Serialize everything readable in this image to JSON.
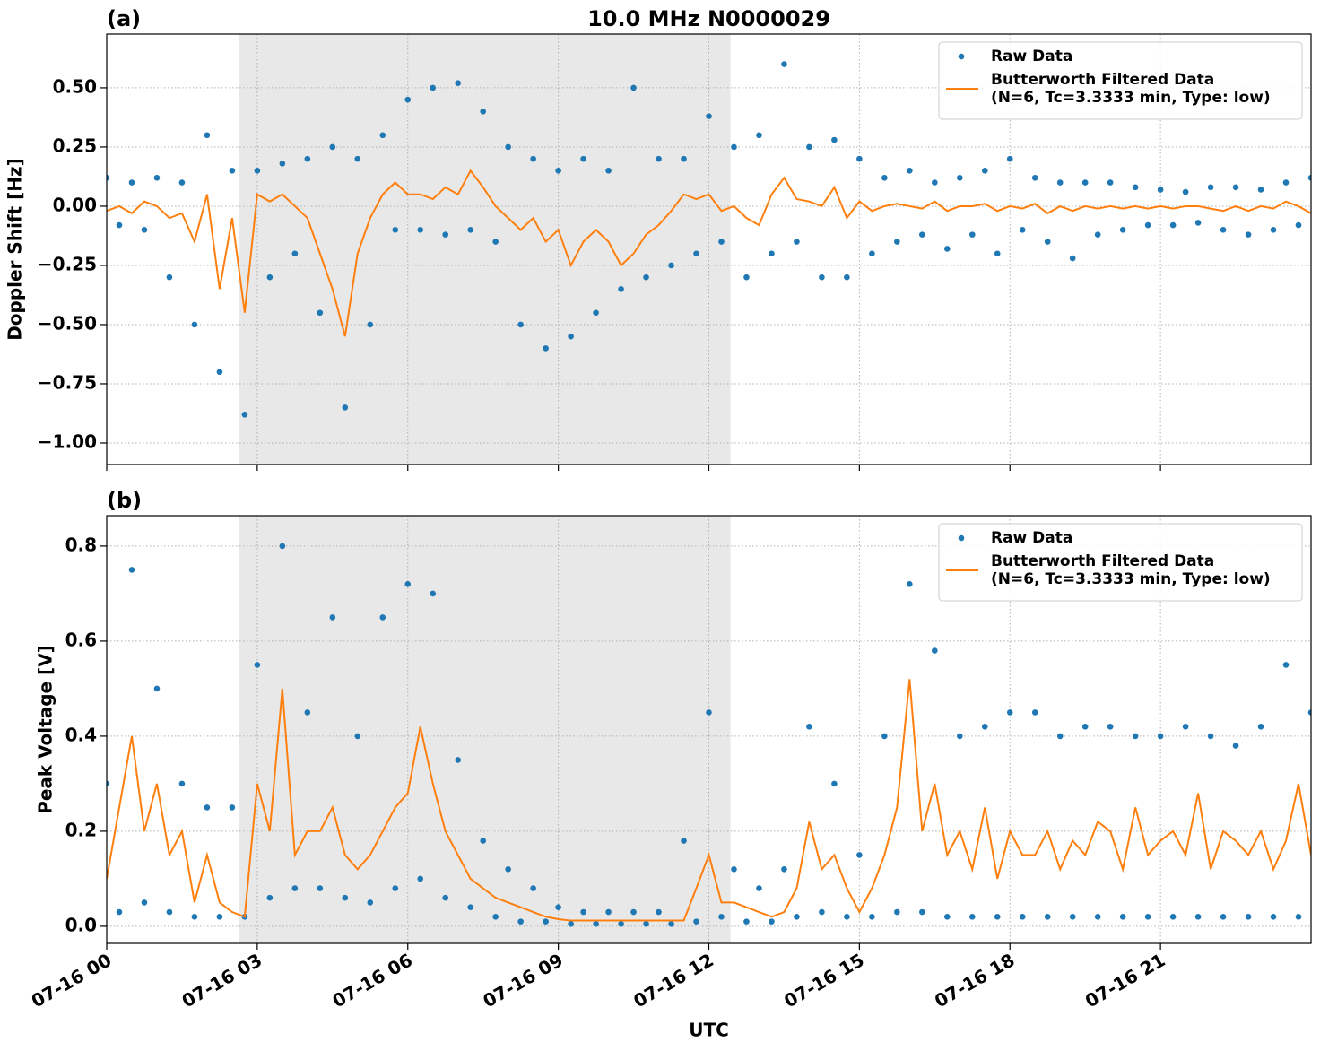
{
  "chart_data": [
    {
      "type": "line",
      "panel_label": "(a)",
      "title": "10.0 MHz N0000029",
      "y_label": "Doppler Shift [Hz]",
      "x": [
        0,
        0.25,
        0.5,
        0.75,
        1,
        1.25,
        1.5,
        1.75,
        2,
        2.25,
        2.5,
        2.75,
        3,
        3.25,
        3.5,
        3.75,
        4,
        4.25,
        4.5,
        4.75,
        5,
        5.25,
        5.5,
        5.75,
        6,
        6.25,
        6.5,
        6.75,
        7,
        7.25,
        7.5,
        7.75,
        8,
        8.25,
        8.5,
        8.75,
        9,
        9.25,
        9.5,
        9.75,
        10,
        10.25,
        10.5,
        10.75,
        11,
        11.25,
        11.5,
        11.75,
        12,
        12.25,
        12.5,
        12.75,
        13,
        13.25,
        13.5,
        13.75,
        14,
        14.25,
        14.5,
        14.75,
        15,
        15.25,
        15.5,
        15.75,
        16,
        16.25,
        16.5,
        16.75,
        17,
        17.25,
        17.5,
        17.75,
        18,
        18.25,
        18.5,
        18.75,
        19,
        19.25,
        19.5,
        19.75,
        20,
        20.25,
        20.5,
        20.75,
        21,
        21.25,
        21.5,
        21.75,
        22,
        22.25,
        22.5,
        22.75,
        23,
        23.25,
        23.5,
        23.75,
        24
      ],
      "series": [
        {
          "name": "Raw Data",
          "color": "#1f77b4",
          "style": "points",
          "values": [
            0.12,
            -0.08,
            0.1,
            -0.1,
            0.12,
            -0.3,
            0.1,
            -0.5,
            0.3,
            -0.7,
            0.15,
            -0.88,
            0.15,
            -0.3,
            0.18,
            -0.2,
            0.2,
            -0.45,
            0.25,
            -0.85,
            0.2,
            -0.5,
            0.3,
            -0.1,
            0.45,
            -0.1,
            0.5,
            -0.12,
            0.52,
            -0.1,
            0.4,
            -0.15,
            0.25,
            -0.5,
            0.2,
            -0.6,
            0.15,
            -0.55,
            0.2,
            -0.45,
            0.15,
            -0.35,
            0.5,
            -0.3,
            0.2,
            -0.25,
            0.2,
            -0.2,
            0.38,
            -0.15,
            0.25,
            -0.3,
            0.3,
            -0.2,
            0.6,
            -0.15,
            0.25,
            -0.3,
            0.28,
            -0.3,
            0.2,
            -0.2,
            0.12,
            -0.15,
            0.15,
            -0.12,
            0.1,
            -0.18,
            0.12,
            -0.12,
            0.15,
            -0.2,
            0.2,
            -0.1,
            0.12,
            -0.15,
            0.1,
            -0.22,
            0.1,
            -0.12,
            0.1,
            -0.1,
            0.08,
            -0.08,
            0.07,
            -0.08,
            0.06,
            -0.07,
            0.08,
            -0.1,
            0.08,
            -0.12,
            0.07,
            -0.1,
            0.1,
            -0.08,
            0.12
          ]
        },
        {
          "name": "Butterworth Filtered Data\n(N=6, Tc=3.3333 min, Type: low)",
          "color": "#ff7f0e",
          "style": "line",
          "values": [
            -0.02,
            0,
            -0.03,
            0.02,
            0,
            -0.05,
            -0.03,
            -0.15,
            0.05,
            -0.35,
            -0.05,
            -0.45,
            0.05,
            0.02,
            0.05,
            0,
            -0.05,
            -0.2,
            -0.35,
            -0.55,
            -0.2,
            -0.05,
            0.05,
            0.1,
            0.05,
            0.05,
            0.03,
            0.08,
            0.05,
            0.15,
            0.08,
            0,
            -0.05,
            -0.1,
            -0.05,
            -0.15,
            -0.1,
            -0.25,
            -0.15,
            -0.1,
            -0.15,
            -0.25,
            -0.2,
            -0.12,
            -0.08,
            -0.02,
            0.05,
            0.03,
            0.05,
            -0.02,
            0,
            -0.05,
            -0.08,
            0.05,
            0.12,
            0.03,
            0.02,
            0,
            0.08,
            -0.05,
            0.02,
            -0.02,
            0,
            0.01,
            0,
            -0.01,
            0.02,
            -0.02,
            0,
            0,
            0.01,
            -0.02,
            0,
            -0.01,
            0.01,
            -0.03,
            0,
            -0.02,
            0,
            -0.01,
            0,
            -0.01,
            0,
            -0.01,
            0,
            -0.01,
            0,
            0,
            -0.01,
            -0.02,
            0,
            -0.02,
            0,
            -0.01,
            0.02,
            0,
            -0.03
          ]
        }
      ],
      "xlim": [
        0,
        24
      ],
      "xticks": [
        0,
        3,
        6,
        9,
        12,
        15,
        18,
        21
      ],
      "ylim": [
        -1.091,
        0.727
      ],
      "yticks": [
        {
          "value": -1,
          "label": "−1.00"
        },
        {
          "value": -0.75,
          "label": "−0.75"
        },
        {
          "value": -0.5,
          "label": "−0.50"
        },
        {
          "value": -0.25,
          "label": "−0.25"
        },
        {
          "value": 0,
          "label": "0.00"
        },
        {
          "value": 0.25,
          "label": "0.25"
        },
        {
          "value": 0.5,
          "label": "0.50"
        }
      ],
      "shade_span": [
        2.64,
        12.43
      ],
      "grid": true,
      "legend": "upper right"
    },
    {
      "type": "line",
      "panel_label": "(b)",
      "y_label": "Peak Voltage [V]",
      "x_label": "UTC",
      "x": [
        0,
        0.25,
        0.5,
        0.75,
        1,
        1.25,
        1.5,
        1.75,
        2,
        2.25,
        2.5,
        2.75,
        3,
        3.25,
        3.5,
        3.75,
        4,
        4.25,
        4.5,
        4.75,
        5,
        5.25,
        5.5,
        5.75,
        6,
        6.25,
        6.5,
        6.75,
        7,
        7.25,
        7.5,
        7.75,
        8,
        8.25,
        8.5,
        8.75,
        9,
        9.25,
        9.5,
        9.75,
        10,
        10.25,
        10.5,
        10.75,
        11,
        11.25,
        11.5,
        11.75,
        12,
        12.25,
        12.5,
        12.75,
        13,
        13.25,
        13.5,
        13.75,
        14,
        14.25,
        14.5,
        14.75,
        15,
        15.25,
        15.5,
        15.75,
        16,
        16.25,
        16.5,
        16.75,
        17,
        17.25,
        17.5,
        17.75,
        18,
        18.25,
        18.5,
        18.75,
        19,
        19.25,
        19.5,
        19.75,
        20,
        20.25,
        20.5,
        20.75,
        21,
        21.25,
        21.5,
        21.75,
        22,
        22.25,
        22.5,
        22.75,
        23,
        23.25,
        23.5,
        23.75,
        24
      ],
      "series": [
        {
          "name": "Raw Data",
          "color": "#1f77b4",
          "style": "points",
          "values": [
            0.3,
            0.03,
            0.75,
            0.05,
            0.5,
            0.03,
            0.3,
            0.02,
            0.25,
            0.02,
            0.25,
            0.02,
            0.55,
            0.06,
            0.8,
            0.08,
            0.45,
            0.08,
            0.65,
            0.06,
            0.4,
            0.05,
            0.65,
            0.08,
            0.72,
            0.1,
            0.7,
            0.06,
            0.35,
            0.04,
            0.18,
            0.02,
            0.12,
            0.01,
            0.08,
            0.01,
            0.04,
            0.005,
            0.03,
            0.005,
            0.03,
            0.005,
            0.03,
            0.005,
            0.03,
            0.005,
            0.18,
            0.01,
            0.45,
            0.02,
            0.12,
            0.01,
            0.08,
            0.01,
            0.12,
            0.02,
            0.42,
            0.03,
            0.3,
            0.02,
            0.15,
            0.02,
            0.4,
            0.03,
            0.72,
            0.03,
            0.58,
            0.02,
            0.4,
            0.02,
            0.42,
            0.02,
            0.45,
            0.02,
            0.45,
            0.02,
            0.4,
            0.02,
            0.42,
            0.02,
            0.42,
            0.02,
            0.4,
            0.02,
            0.4,
            0.02,
            0.42,
            0.02,
            0.4,
            0.02,
            0.38,
            0.02,
            0.42,
            0.02,
            0.55,
            0.02,
            0.45
          ]
        },
        {
          "name": "Butterworth Filtered Data\n(N=6, Tc=3.3333 min, Type: low)",
          "color": "#ff7f0e",
          "style": "line",
          "values": [
            0.1,
            0.25,
            0.4,
            0.2,
            0.3,
            0.15,
            0.2,
            0.05,
            0.15,
            0.05,
            0.03,
            0.02,
            0.3,
            0.2,
            0.5,
            0.15,
            0.2,
            0.2,
            0.25,
            0.15,
            0.12,
            0.15,
            0.2,
            0.25,
            0.28,
            0.42,
            0.3,
            0.2,
            0.15,
            0.1,
            0.08,
            0.06,
            0.05,
            0.04,
            0.03,
            0.02,
            0.015,
            0.012,
            0.012,
            0.012,
            0.012,
            0.012,
            0.012,
            0.012,
            0.012,
            0.012,
            0.012,
            0.08,
            0.15,
            0.05,
            0.05,
            0.04,
            0.03,
            0.02,
            0.03,
            0.08,
            0.22,
            0.12,
            0.15,
            0.08,
            0.03,
            0.08,
            0.15,
            0.25,
            0.52,
            0.2,
            0.3,
            0.15,
            0.2,
            0.12,
            0.25,
            0.1,
            0.2,
            0.15,
            0.15,
            0.2,
            0.12,
            0.18,
            0.15,
            0.22,
            0.2,
            0.12,
            0.25,
            0.15,
            0.18,
            0.2,
            0.15,
            0.28,
            0.12,
            0.2,
            0.18,
            0.15,
            0.2,
            0.12,
            0.18,
            0.3,
            0.15
          ]
        }
      ],
      "xlim": [
        0,
        24
      ],
      "xticks": [
        {
          "value": 0,
          "label": "07-16 00"
        },
        {
          "value": 3,
          "label": "07-16 03"
        },
        {
          "value": 6,
          "label": "07-16 06"
        },
        {
          "value": 9,
          "label": "07-16 09"
        },
        {
          "value": 12,
          "label": "07-16 12"
        },
        {
          "value": 15,
          "label": "07-16 15"
        },
        {
          "value": 18,
          "label": "07-16 18"
        },
        {
          "value": 21,
          "label": "07-16 21"
        }
      ],
      "ylim": [
        -0.036,
        0.864
      ],
      "yticks": [
        {
          "value": 0,
          "label": "0.0"
        },
        0.2,
        0.4,
        0.6,
        0.8
      ],
      "shade_span": [
        2.64,
        12.43
      ],
      "grid": true,
      "legend": "upper right"
    }
  ]
}
